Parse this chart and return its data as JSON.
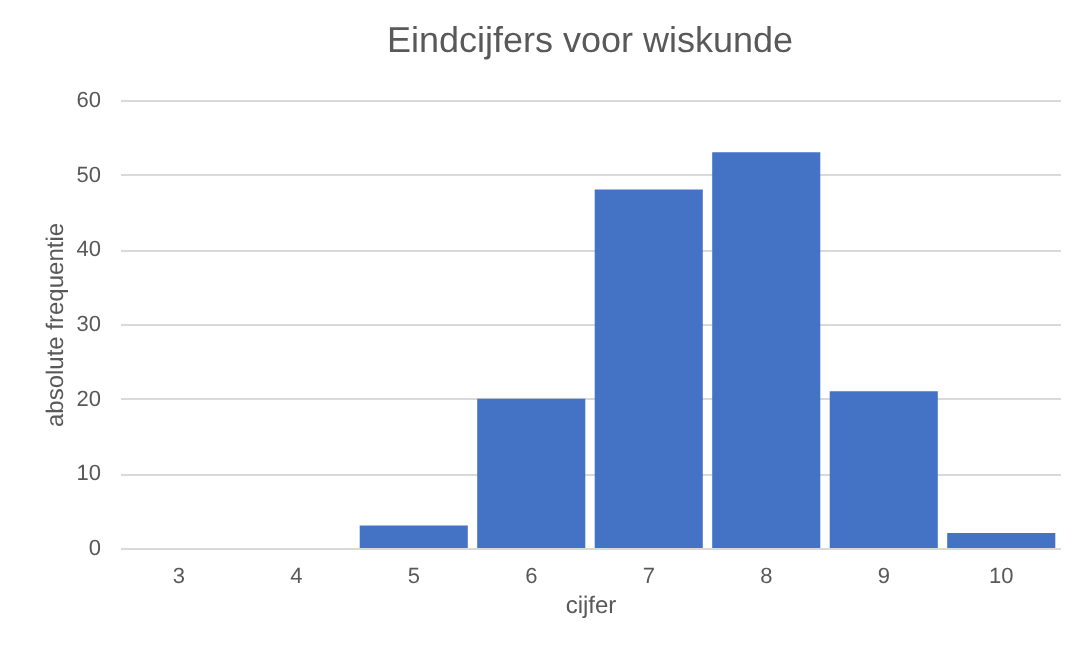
{
  "chart_data": {
    "type": "bar",
    "title": "Eindcijfers voor wiskunde",
    "xlabel": "cijfer",
    "ylabel": "absolute frequentie",
    "categories": [
      "3",
      "4",
      "5",
      "6",
      "7",
      "8",
      "9",
      "10"
    ],
    "values": [
      0,
      0,
      3,
      20,
      48,
      53,
      21,
      2
    ],
    "color": "#4472c4",
    "ylim": [
      0,
      60
    ],
    "yticks": [
      0,
      10,
      20,
      30,
      40,
      50,
      60
    ],
    "grid": "y"
  }
}
